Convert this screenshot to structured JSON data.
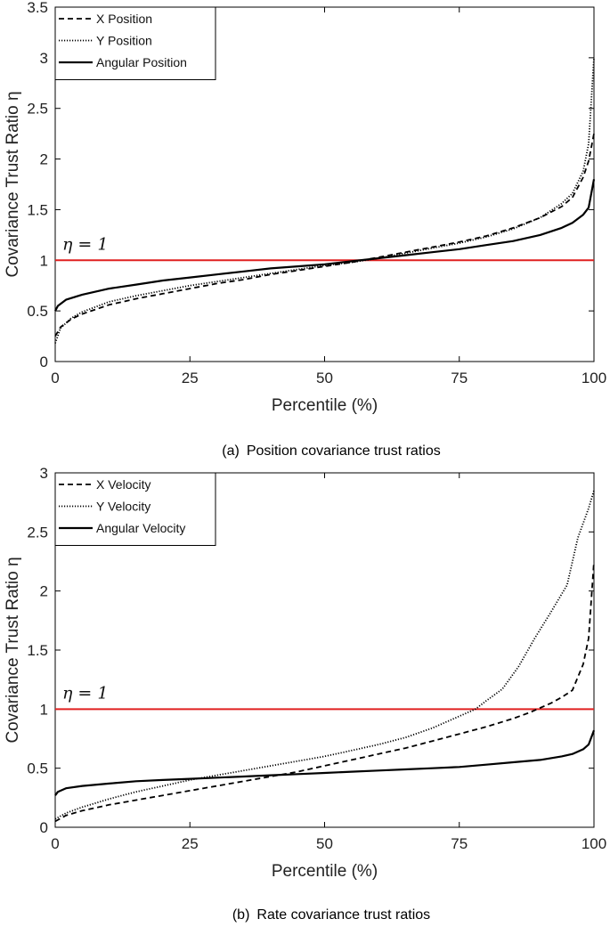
{
  "chart_data": [
    {
      "type": "line",
      "caption_label": "(a)",
      "caption_text": "Position covariance trust ratios",
      "xlabel": "Percentile (%)",
      "ylabel": "Covariance Trust Ratio η",
      "xlim": [
        0,
        100
      ],
      "ylim": [
        0,
        3.5
      ],
      "xticks": [
        0,
        25,
        50,
        75,
        100
      ],
      "yticks": [
        0,
        0.5,
        1,
        1.5,
        2,
        2.5,
        3,
        3.5
      ],
      "xtick_labels": [
        "0",
        "25",
        "50",
        "75",
        "100"
      ],
      "ytick_labels": [
        "0",
        "0.5",
        "1",
        "1.5",
        "2",
        "2.5",
        "3",
        "3.5"
      ],
      "legend_position": "top-left",
      "reference_line": {
        "y": 1,
        "label": "η = 1",
        "color": "#e02020"
      },
      "series": [
        {
          "name": "X Position",
          "style": "dashed",
          "x": [
            0,
            1,
            3,
            5,
            10,
            15,
            20,
            25,
            30,
            35,
            40,
            45,
            50,
            55,
            60,
            65,
            70,
            75,
            80,
            85,
            90,
            94,
            96,
            98,
            99,
            100
          ],
          "y": [
            0.25,
            0.34,
            0.42,
            0.47,
            0.56,
            0.62,
            0.67,
            0.72,
            0.77,
            0.81,
            0.86,
            0.9,
            0.94,
            0.98,
            1.03,
            1.08,
            1.13,
            1.18,
            1.24,
            1.32,
            1.42,
            1.53,
            1.62,
            1.82,
            1.98,
            2.25
          ]
        },
        {
          "name": "Y Position",
          "style": "dotted",
          "x": [
            0,
            1,
            3,
            5,
            10,
            15,
            20,
            25,
            30,
            35,
            40,
            45,
            50,
            55,
            60,
            65,
            70,
            75,
            80,
            85,
            90,
            94,
            96,
            98,
            99,
            100
          ],
          "y": [
            0.18,
            0.33,
            0.43,
            0.49,
            0.59,
            0.65,
            0.7,
            0.75,
            0.79,
            0.83,
            0.87,
            0.91,
            0.95,
            0.98,
            1.02,
            1.07,
            1.12,
            1.17,
            1.23,
            1.31,
            1.42,
            1.56,
            1.66,
            1.88,
            2.15,
            3.0
          ]
        },
        {
          "name": "Angular Position",
          "style": "solid",
          "x": [
            0,
            0.5,
            2,
            5,
            10,
            15,
            20,
            25,
            30,
            35,
            40,
            45,
            50,
            55,
            60,
            65,
            70,
            75,
            80,
            85,
            90,
            94,
            96,
            98,
            99,
            100
          ],
          "y": [
            0.5,
            0.55,
            0.61,
            0.66,
            0.72,
            0.76,
            0.8,
            0.83,
            0.86,
            0.89,
            0.92,
            0.94,
            0.96,
            0.99,
            1.02,
            1.05,
            1.08,
            1.11,
            1.15,
            1.19,
            1.25,
            1.32,
            1.37,
            1.45,
            1.52,
            1.8
          ]
        }
      ]
    },
    {
      "type": "line",
      "caption_label": "(b)",
      "caption_text": "Rate covariance trust ratios",
      "xlabel": "Percentile (%)",
      "ylabel": "Covariance Trust Ratio η",
      "xlim": [
        0,
        100
      ],
      "ylim": [
        0,
        3
      ],
      "xticks": [
        0,
        25,
        50,
        75,
        100
      ],
      "yticks": [
        0,
        0.5,
        1,
        1.5,
        2,
        2.5,
        3
      ],
      "xtick_labels": [
        "0",
        "25",
        "50",
        "75",
        "100"
      ],
      "ytick_labels": [
        "0",
        "0.5",
        "1",
        "1.5",
        "2",
        "2.5",
        "3"
      ],
      "legend_position": "top-left",
      "reference_line": {
        "y": 1,
        "label": "η = 1",
        "color": "#e02020"
      },
      "series": [
        {
          "name": "X Velocity",
          "style": "dashed",
          "x": [
            0,
            2,
            5,
            10,
            15,
            20,
            25,
            30,
            35,
            40,
            45,
            50,
            55,
            60,
            65,
            70,
            75,
            80,
            85,
            88,
            90,
            92,
            94,
            96,
            98,
            99,
            100
          ],
          "y": [
            0.05,
            0.1,
            0.14,
            0.19,
            0.23,
            0.27,
            0.31,
            0.35,
            0.39,
            0.43,
            0.47,
            0.52,
            0.57,
            0.62,
            0.67,
            0.73,
            0.79,
            0.85,
            0.92,
            0.97,
            1.01,
            1.05,
            1.1,
            1.16,
            1.38,
            1.6,
            2.25
          ]
        },
        {
          "name": "Y Velocity",
          "style": "dotted",
          "x": [
            0,
            2,
            5,
            10,
            15,
            20,
            25,
            30,
            35,
            40,
            45,
            50,
            55,
            60,
            65,
            70,
            75,
            78,
            80,
            83,
            86,
            89,
            92,
            95,
            97,
            99,
            100
          ],
          "y": [
            0.07,
            0.12,
            0.17,
            0.24,
            0.3,
            0.35,
            0.4,
            0.44,
            0.48,
            0.52,
            0.56,
            0.6,
            0.65,
            0.7,
            0.76,
            0.84,
            0.94,
            1.0,
            1.07,
            1.17,
            1.36,
            1.6,
            1.82,
            2.05,
            2.45,
            2.7,
            2.85
          ]
        },
        {
          "name": "Angular Velocity",
          "style": "solid",
          "x": [
            0,
            0.5,
            2,
            5,
            10,
            15,
            20,
            25,
            30,
            35,
            40,
            45,
            50,
            55,
            60,
            65,
            70,
            75,
            80,
            85,
            90,
            94,
            96,
            98,
            99,
            100
          ],
          "y": [
            0.27,
            0.3,
            0.33,
            0.35,
            0.37,
            0.39,
            0.4,
            0.41,
            0.42,
            0.43,
            0.44,
            0.45,
            0.46,
            0.47,
            0.48,
            0.49,
            0.5,
            0.51,
            0.53,
            0.55,
            0.57,
            0.6,
            0.62,
            0.66,
            0.7,
            0.82
          ]
        }
      ]
    }
  ]
}
